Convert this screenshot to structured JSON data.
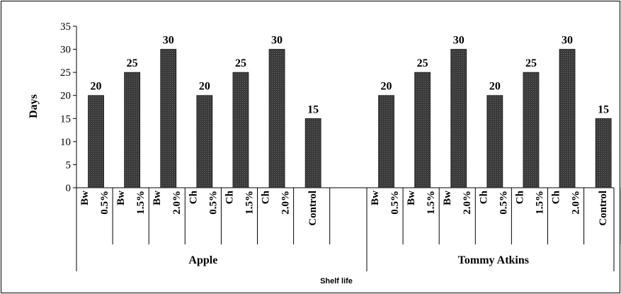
{
  "chart_data": {
    "type": "bar",
    "ylabel": "Days",
    "xlabel": "Shelf life",
    "ylim": [
      0,
      35
    ],
    "yticks": [
      0,
      5,
      10,
      15,
      20,
      25,
      30,
      35
    ],
    "groups": [
      {
        "name": "Apple",
        "categories": [
          {
            "line1": "Bw",
            "line2": "0.5%"
          },
          {
            "line1": "Bw",
            "line2": "1.5%"
          },
          {
            "line1": "Bw",
            "line2": "2.0%"
          },
          {
            "line1": "Ch",
            "line2": "0.5%"
          },
          {
            "line1": "Ch",
            "line2": "1.5%"
          },
          {
            "line1": "Ch",
            "line2": "2.0%"
          },
          {
            "line1": "Control",
            "line2": ""
          }
        ],
        "values": [
          20,
          25,
          30,
          20,
          25,
          30,
          15
        ]
      },
      {
        "name": "Tommy Atkins",
        "categories": [
          {
            "line1": "Bw",
            "line2": "0.5%"
          },
          {
            "line1": "Bw",
            "line2": "1.5%"
          },
          {
            "line1": "Bw",
            "line2": "2.0%"
          },
          {
            "line1": "Ch",
            "line2": "0.5%"
          },
          {
            "line1": "Ch",
            "line2": "1.5%"
          },
          {
            "line1": "Ch",
            "line2": "2.0%"
          },
          {
            "line1": "Control",
            "line2": ""
          }
        ],
        "values": [
          20,
          25,
          30,
          20,
          25,
          30,
          15
        ]
      }
    ],
    "bar_color": "#3a3a3a",
    "grid": false,
    "legend": "none"
  }
}
